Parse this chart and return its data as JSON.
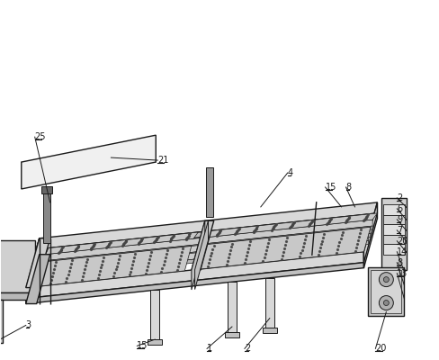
{
  "bg_color": "#ffffff",
  "line_color": "#1a1a1a",
  "frame_color": "#1a1a1a",
  "fill_light": "#e8e8e8",
  "fill_mid": "#d0d0d0",
  "fill_dark": "#b0b0b0",
  "dot_color": "#444444",
  "lw_main": 1.0,
  "lw_thin": 0.5,
  "figsize": [
    4.88,
    4.0
  ],
  "dpi": 100
}
